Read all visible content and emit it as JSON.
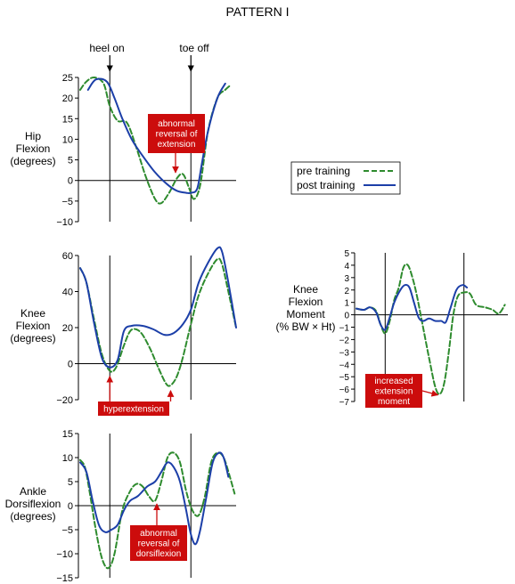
{
  "figure": {
    "title": "PATTERN I",
    "markers": {
      "heel_on": "heel on",
      "toe_off": "toe off"
    },
    "colors": {
      "pre": "#2e8b2e",
      "post": "#1c3fa8",
      "annotation_bg": "#cc0c0c",
      "annotation_arrow": "#cc0c0c"
    }
  },
  "legend": {
    "pre_label": "pre training",
    "post_label": "post training",
    "placement": "right, beside hip chart"
  },
  "chart_data": [
    {
      "id": "hip",
      "type": "line",
      "ylabel": [
        "Hip",
        "Flexion",
        "(degrees)"
      ],
      "ylim": [
        -10,
        25
      ],
      "yticks": [
        25,
        20,
        15,
        10,
        5,
        0,
        -5,
        -10
      ],
      "x_domain": [
        0,
        100
      ],
      "event_lines": [
        19,
        71
      ],
      "series": [
        {
          "key": "pre",
          "name": "pre training",
          "style": "dashed",
          "points": [
            [
              0,
              22
            ],
            [
              4,
              24
            ],
            [
              9,
              25
            ],
            [
              15,
              23.5
            ],
            [
              19,
              18
            ],
            [
              24,
              14.5
            ],
            [
              30,
              14
            ],
            [
              36,
              8
            ],
            [
              42,
              1
            ],
            [
              48,
              -4.5
            ],
            [
              52,
              -5.5
            ],
            [
              57,
              -3
            ],
            [
              62,
              0.5
            ],
            [
              66,
              1.5
            ],
            [
              70,
              -2
            ],
            [
              73,
              -4.5
            ],
            [
              77,
              -1
            ],
            [
              82,
              12
            ],
            [
              88,
              20
            ],
            [
              93,
              22
            ],
            [
              96,
              23
            ]
          ]
        },
        {
          "key": "post",
          "name": "post training",
          "style": "solid",
          "points": [
            [
              5,
              22
            ],
            [
              10,
              24.5
            ],
            [
              17,
              24
            ],
            [
              22,
              20
            ],
            [
              27,
              15
            ],
            [
              33,
              10
            ],
            [
              40,
              6
            ],
            [
              48,
              2
            ],
            [
              56,
              -1
            ],
            [
              62,
              -2.5
            ],
            [
              68,
              -3
            ],
            [
              71,
              -3
            ],
            [
              75,
              -2
            ],
            [
              78,
              4
            ],
            [
              82,
              12
            ],
            [
              88,
              20
            ],
            [
              93,
              23.5
            ]
          ]
        }
      ],
      "annotation": {
        "lines": [
          "abnormal",
          "reversal of",
          "extension"
        ],
        "points_to": [
          66,
          1.5
        ]
      }
    },
    {
      "id": "knee_angle",
      "type": "line",
      "ylabel": [
        "Knee",
        "Flexion",
        "(degrees)"
      ],
      "ylim": [
        -20,
        60
      ],
      "yticks": [
        60,
        40,
        20,
        0,
        -20
      ],
      "x_domain": [
        0,
        100
      ],
      "event_lines": [
        19,
        71
      ],
      "series": [
        {
          "key": "pre",
          "name": "pre training",
          "style": "dashed",
          "points": [
            [
              0,
              53
            ],
            [
              4,
              45
            ],
            [
              9,
              24
            ],
            [
              14,
              5
            ],
            [
              19,
              -4
            ],
            [
              23,
              -2
            ],
            [
              28,
              10
            ],
            [
              32,
              18
            ],
            [
              36,
              19
            ],
            [
              40,
              16
            ],
            [
              45,
              8
            ],
            [
              50,
              -2
            ],
            [
              55,
              -11
            ],
            [
              58,
              -12
            ],
            [
              62,
              -7
            ],
            [
              66,
              4
            ],
            [
              71,
              22
            ],
            [
              76,
              38
            ],
            [
              82,
              50
            ],
            [
              88,
              58
            ],
            [
              91,
              55
            ],
            [
              95,
              40
            ],
            [
              100,
              20
            ]
          ]
        },
        {
          "key": "post",
          "name": "post training",
          "style": "solid",
          "points": [
            [
              0,
              53
            ],
            [
              4,
              45
            ],
            [
              9,
              22
            ],
            [
              14,
              3
            ],
            [
              19,
              -2
            ],
            [
              24,
              2
            ],
            [
              28,
              18
            ],
            [
              33,
              21
            ],
            [
              40,
              21
            ],
            [
              47,
              19
            ],
            [
              54,
              16
            ],
            [
              60,
              17
            ],
            [
              66,
              22
            ],
            [
              71,
              30
            ],
            [
              76,
              45
            ],
            [
              82,
              56
            ],
            [
              88,
              64
            ],
            [
              91,
              62
            ],
            [
              95,
              45
            ],
            [
              100,
              20
            ]
          ]
        }
      ],
      "annotation": {
        "lines": [
          "hyperextension"
        ],
        "points_to": [
          [
            19,
            -4
          ],
          [
            58,
            -12
          ]
        ]
      }
    },
    {
      "id": "ankle",
      "type": "line",
      "ylabel": [
        "Ankle",
        "Dorsiflexion",
        "(degrees)"
      ],
      "ylim": [
        -15,
        15
      ],
      "yticks": [
        15,
        10,
        5,
        0,
        -5,
        -10,
        -15
      ],
      "x_domain": [
        0,
        100
      ],
      "event_lines": [
        19,
        71
      ],
      "series": [
        {
          "key": "pre",
          "name": "pre training",
          "style": "dashed",
          "points": [
            [
              0,
              9.5
            ],
            [
              3,
              8
            ],
            [
              6,
              3
            ],
            [
              10,
              -5
            ],
            [
              14,
              -11
            ],
            [
              18,
              -13
            ],
            [
              22,
              -10
            ],
            [
              27,
              -1
            ],
            [
              32,
              3
            ],
            [
              36,
              4.5
            ],
            [
              40,
              4
            ],
            [
              44,
              2
            ],
            [
              48,
              1
            ],
            [
              52,
              5
            ],
            [
              56,
              10
            ],
            [
              60,
              11
            ],
            [
              64,
              9
            ],
            [
              68,
              3
            ],
            [
              72,
              -1
            ],
            [
              76,
              -2
            ],
            [
              80,
              2
            ],
            [
              84,
              9
            ],
            [
              88,
              11
            ],
            [
              92,
              10
            ],
            [
              96,
              6
            ],
            [
              99,
              2.5
            ]
          ]
        },
        {
          "key": "post",
          "name": "post training",
          "style": "solid",
          "points": [
            [
              0,
              9
            ],
            [
              4,
              7
            ],
            [
              8,
              1
            ],
            [
              12,
              -4
            ],
            [
              16,
              -5.5
            ],
            [
              20,
              -5
            ],
            [
              24,
              -4
            ],
            [
              28,
              -1
            ],
            [
              32,
              1
            ],
            [
              37,
              2
            ],
            [
              43,
              4
            ],
            [
              48,
              5
            ],
            [
              52,
              7
            ],
            [
              56,
              9
            ],
            [
              60,
              8
            ],
            [
              64,
              5
            ],
            [
              68,
              -1
            ],
            [
              71,
              -6
            ],
            [
              74,
              -8
            ],
            [
              77,
              -5
            ],
            [
              81,
              2
            ],
            [
              85,
              9
            ],
            [
              89,
              11
            ],
            [
              92,
              10
            ],
            [
              95,
              6
            ]
          ]
        }
      ],
      "annotation": {
        "lines": [
          "abnormal",
          "reversal of",
          "dorsiflexion"
        ],
        "points_to": [
          48,
          1
        ]
      }
    },
    {
      "id": "knee_moment",
      "type": "line",
      "ylabel": [
        "Knee",
        "Flexion",
        "Moment",
        "(% BW × Ht)"
      ],
      "ylim": [
        -7,
        5
      ],
      "yticks": [
        5,
        4,
        3,
        2,
        1,
        0,
        -1,
        -2,
        -3,
        -4,
        -5,
        -6,
        -7
      ],
      "x_domain": [
        0,
        100
      ],
      "event_lines": [
        19,
        71
      ],
      "series": [
        {
          "key": "pre",
          "name": "pre training",
          "style": "dashed",
          "points": [
            [
              0,
              0.5
            ],
            [
              5,
              0.4
            ],
            [
              9,
              0.6
            ],
            [
              13,
              0.3
            ],
            [
              16,
              -0.8
            ],
            [
              19,
              -1.5
            ],
            [
              22,
              -0.5
            ],
            [
              25,
              1.2
            ],
            [
              28,
              2.2
            ],
            [
              31,
              3.8
            ],
            [
              34,
              4.0
            ],
            [
              37,
              3.0
            ],
            [
              40,
              1.5
            ],
            [
              44,
              -1
            ],
            [
              48,
              -3.5
            ],
            [
              52,
              -5.8
            ],
            [
              55,
              -6.4
            ],
            [
              58,
              -5.5
            ],
            [
              61,
              -3
            ],
            [
              64,
              0
            ],
            [
              67,
              1.5
            ],
            [
              71,
              1.8
            ],
            [
              75,
              1.7
            ],
            [
              79,
              0.8
            ],
            [
              85,
              0.6
            ],
            [
              90,
              0.4
            ],
            [
              94,
              0.1
            ],
            [
              98,
              0.8
            ]
          ]
        },
        {
          "key": "post",
          "name": "post training",
          "style": "solid",
          "points": [
            [
              0,
              0.5
            ],
            [
              5,
              0.4
            ],
            [
              9,
              0.6
            ],
            [
              13,
              0.2
            ],
            [
              16,
              -0.8
            ],
            [
              19,
              -1.2
            ],
            [
              22,
              -0.2
            ],
            [
              25,
              1
            ],
            [
              29,
              2
            ],
            [
              32,
              2.4
            ],
            [
              35,
              2.2
            ],
            [
              38,
              1
            ],
            [
              41,
              -0.2
            ],
            [
              44,
              -0.5
            ],
            [
              48,
              -0.3
            ],
            [
              52,
              -0.5
            ],
            [
              56,
              -0.5
            ],
            [
              59,
              -0.6
            ],
            [
              62,
              0.5
            ],
            [
              66,
              2
            ],
            [
              70,
              2.4
            ],
            [
              73,
              2.2
            ]
          ]
        }
      ],
      "annotation": {
        "lines": [
          "increased",
          "extension",
          "moment"
        ],
        "points_to": [
          55,
          -6.4
        ]
      }
    }
  ]
}
